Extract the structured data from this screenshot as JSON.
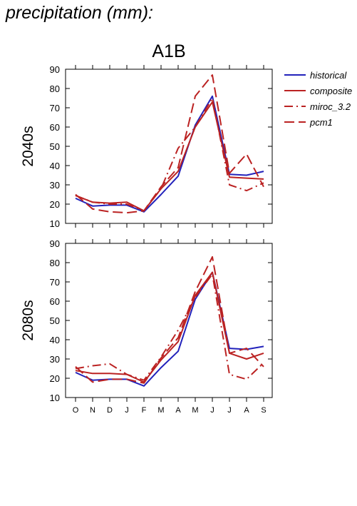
{
  "page_title": "precipitation (mm):",
  "colors": {
    "historical": "#2222bb",
    "models": "#bb2222",
    "axis": "#000000"
  },
  "chart_data": [
    {
      "type": "line",
      "title": "A1B",
      "ylabel": "2040s",
      "xlabel": "",
      "categories": [
        "O",
        "N",
        "D",
        "J",
        "F",
        "M",
        "A",
        "M",
        "J",
        "J",
        "A",
        "S"
      ],
      "ylim": [
        10,
        90
      ],
      "yticks": [
        10,
        20,
        30,
        40,
        50,
        60,
        70,
        80,
        90
      ],
      "grid": false,
      "legend_position": "right",
      "series": [
        {
          "name": "historical",
          "color": "#2222bb",
          "dash": "solid",
          "values": [
            23,
            19,
            19.5,
            19.5,
            16,
            25,
            34.5,
            61,
            76,
            35.5,
            35,
            37
          ]
        },
        {
          "name": "composite",
          "color": "#bb2222",
          "dash": "solid",
          "values": [
            24.5,
            21,
            20.5,
            21,
            16.5,
            28,
            37,
            60,
            73,
            34,
            33.5,
            33
          ]
        },
        {
          "name": "miroc_3.2",
          "color": "#bb2222",
          "dash": "dashdot",
          "values": [
            24.5,
            21,
            20,
            20,
            16.5,
            28,
            49,
            60,
            75,
            30,
            27,
            31
          ]
        },
        {
          "name": "pcm1",
          "color": "#bb2222",
          "dash": "dashed",
          "values": [
            25,
            17.5,
            16,
            15.5,
            16.5,
            29,
            39,
            76,
            87,
            36,
            46,
            29
          ]
        }
      ]
    },
    {
      "type": "line",
      "title": "",
      "ylabel": "2080s",
      "xlabel": "",
      "categories": [
        "O",
        "N",
        "D",
        "J",
        "F",
        "M",
        "A",
        "M",
        "J",
        "J",
        "A",
        "S"
      ],
      "ylim": [
        10,
        90
      ],
      "yticks": [
        10,
        20,
        30,
        40,
        50,
        60,
        70,
        80,
        90
      ],
      "grid": false,
      "legend_position": "none",
      "series": [
        {
          "name": "historical",
          "color": "#2222bb",
          "dash": "solid",
          "values": [
            23,
            19,
            19.5,
            19.5,
            16,
            25.5,
            34,
            61,
            75,
            35.5,
            35,
            36.5
          ]
        },
        {
          "name": "composite",
          "color": "#bb2222",
          "dash": "solid",
          "values": [
            24,
            22.5,
            22.5,
            22,
            18,
            29.5,
            39,
            63,
            75,
            33,
            30,
            33
          ]
        },
        {
          "name": "miroc_3.2",
          "color": "#bb2222",
          "dash": "dashdot",
          "values": [
            25,
            26.5,
            27.5,
            22,
            19,
            31,
            45,
            62,
            74,
            22,
            19.5,
            28
          ]
        },
        {
          "name": "pcm1",
          "color": "#bb2222",
          "dash": "dashed",
          "values": [
            26,
            18,
            19.5,
            19.5,
            17.5,
            30.5,
            41,
            65,
            83,
            33,
            35.5,
            26
          ]
        }
      ]
    }
  ]
}
